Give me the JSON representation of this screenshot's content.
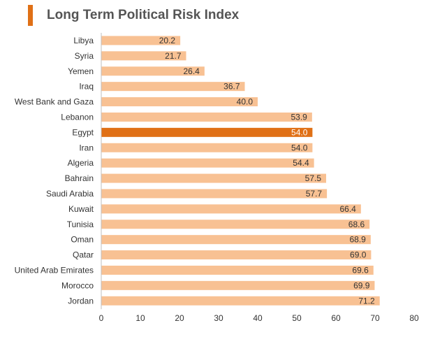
{
  "chart_data": {
    "type": "bar",
    "orientation": "horizontal",
    "title": "Long Term Political Risk Index",
    "categories": [
      "Libya",
      "Syria",
      "Yemen",
      "Iraq",
      "West Bank and Gaza",
      "Lebanon",
      "Egypt",
      "Iran",
      "Algeria",
      "Bahrain",
      "Saudi Arabia",
      "Kuwait",
      "Tunisia",
      "Oman",
      "Qatar",
      "United Arab Emirates",
      "Morocco",
      "Jordan"
    ],
    "values": [
      20.2,
      21.7,
      26.4,
      36.7,
      40.0,
      53.9,
      54.0,
      54.0,
      54.4,
      57.5,
      57.7,
      66.4,
      68.6,
      68.9,
      69.0,
      69.6,
      69.9,
      71.2
    ],
    "value_labels": [
      "20.2",
      "21.7",
      "26.4",
      "36.7",
      "40.0",
      "53.9",
      "54.0",
      "54.0",
      "54.4",
      "57.5",
      "57.7",
      "66.4",
      "68.6",
      "68.9",
      "69.0",
      "69.6",
      "69.9",
      "71.2"
    ],
    "highlight_category": "Egypt",
    "xlim": [
      0,
      80
    ],
    "xticks": [
      0,
      10,
      20,
      30,
      40,
      50,
      60,
      70,
      80
    ],
    "xlabel": "",
    "ylabel": "",
    "grid": false,
    "colors": {
      "bar": "#f8c193",
      "highlight": "#e07016",
      "accent": "#e07016"
    }
  }
}
